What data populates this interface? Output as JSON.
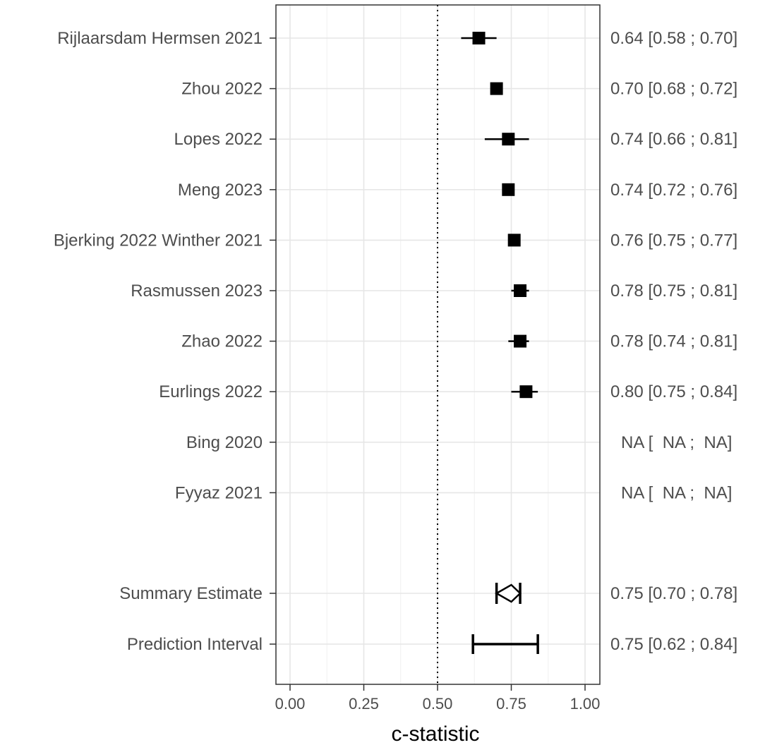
{
  "chart_data": {
    "type": "forest",
    "xlabel": "c-statistic",
    "xlim": [
      0,
      1
    ],
    "x_ticks": [
      0,
      0.25,
      0.5,
      0.75,
      1
    ],
    "x_tick_labels": [
      "0.00",
      "0.25",
      "0.50",
      "0.75",
      "1.00"
    ],
    "reference_line": 0.5,
    "grid": true,
    "studies": [
      {
        "label": "Rijlaarsdam Hermsen 2021",
        "estimate": 0.64,
        "lower": 0.58,
        "upper": 0.7,
        "ci_text": "0.64 [0.58 ; 0.70]"
      },
      {
        "label": "Zhou 2022",
        "estimate": 0.7,
        "lower": 0.68,
        "upper": 0.72,
        "ci_text": "0.70 [0.68 ; 0.72]"
      },
      {
        "label": "Lopes 2022",
        "estimate": 0.74,
        "lower": 0.66,
        "upper": 0.81,
        "ci_text": "0.74 [0.66 ; 0.81]"
      },
      {
        "label": "Meng 2023",
        "estimate": 0.74,
        "lower": 0.72,
        "upper": 0.76,
        "ci_text": "0.74 [0.72 ; 0.76]"
      },
      {
        "label": "Bjerking 2022 Winther 2021",
        "estimate": 0.76,
        "lower": 0.75,
        "upper": 0.77,
        "ci_text": "0.76 [0.75 ; 0.77]"
      },
      {
        "label": "Rasmussen 2023",
        "estimate": 0.78,
        "lower": 0.75,
        "upper": 0.81,
        "ci_text": "0.78 [0.75 ; 0.81]"
      },
      {
        "label": "Zhao 2022",
        "estimate": 0.78,
        "lower": 0.74,
        "upper": 0.81,
        "ci_text": "0.78 [0.74 ; 0.81]"
      },
      {
        "label": "Eurlings 2022",
        "estimate": 0.8,
        "lower": 0.75,
        "upper": 0.84,
        "ci_text": "0.80 [0.75 ; 0.84]"
      },
      {
        "label": "Bing 2020",
        "estimate": null,
        "lower": null,
        "upper": null,
        "ci_text": "NA [  NA ;  NA]"
      },
      {
        "label": "Fyyaz 2021",
        "estimate": null,
        "lower": null,
        "upper": null,
        "ci_text": "NA [  NA ;  NA]"
      }
    ],
    "summary": {
      "label": "Summary Estimate",
      "estimate": 0.75,
      "lower": 0.7,
      "upper": 0.78,
      "ci_text": "0.75 [0.70 ; 0.78]"
    },
    "prediction_interval": {
      "label": "Prediction Interval",
      "estimate": 0.75,
      "lower": 0.62,
      "upper": 0.84,
      "ci_text": "0.75 [0.62 ; 0.84]"
    }
  }
}
